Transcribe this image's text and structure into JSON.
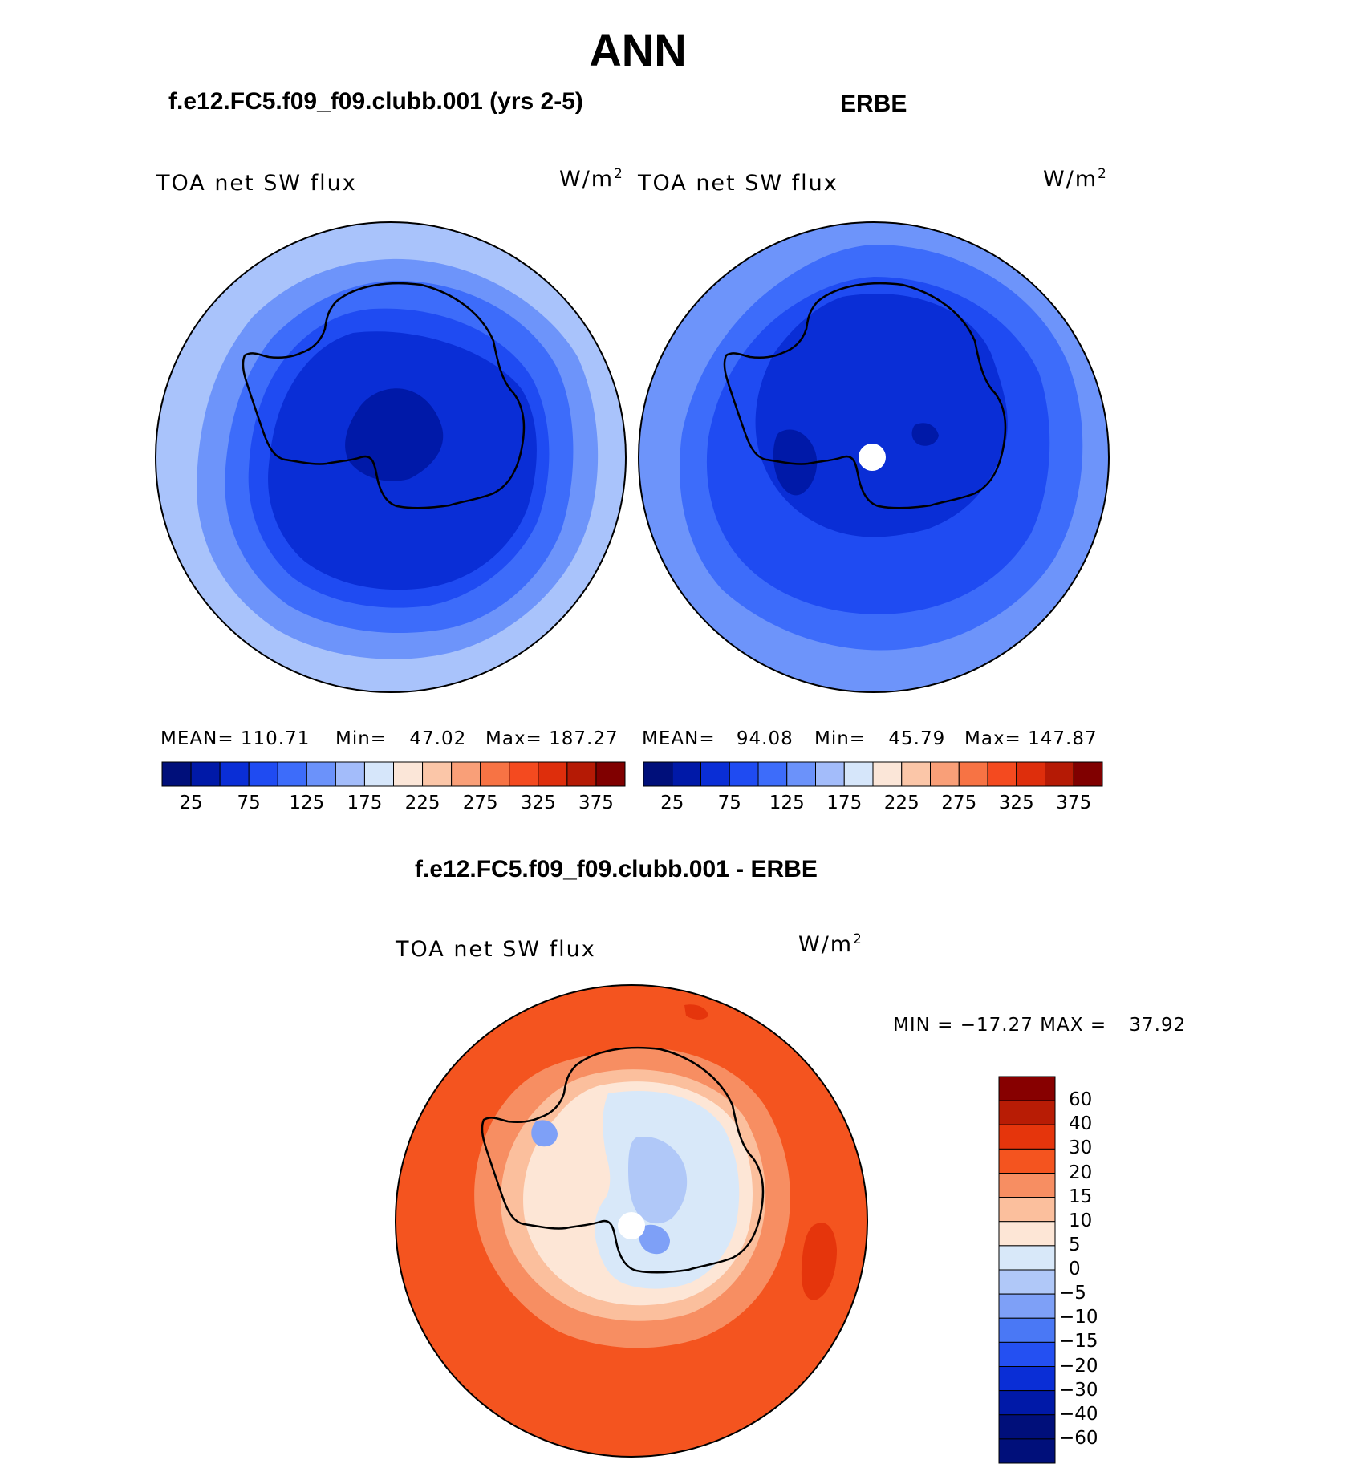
{
  "main_title": "ANN",
  "colors": {
    "model_palette": [
      "#000f7a",
      "#0019a8",
      "#0a2ed6",
      "#1f4bf2",
      "#3d6cfa",
      "#6b92fa",
      "#a3bcfa",
      "#d6e6fa",
      "#fbe6d8",
      "#fbc6a8",
      "#f99f78",
      "#f77344",
      "#f44a1f",
      "#de2e0c",
      "#b51a05",
      "#800000"
    ],
    "diff_palette": [
      "#000f7a",
      "#0019a8",
      "#0a2ed6",
      "#2450f2",
      "#4a78f5",
      "#7ea0f7",
      "#b0c8f8",
      "#d8e8f9",
      "#fde6d6",
      "#fbbf9d",
      "#f78e62",
      "#f4541f",
      "#e5350c",
      "#b81c05",
      "#870000"
    ]
  },
  "map_common": {
    "field": "TOA net SW flux",
    "units_base": "W/m",
    "units_exp": "2"
  },
  "model_panel": {
    "title": "f.e12.FC5.f09_f09.clubb.001 (yrs 2-5)",
    "mean_label": "MEAN=",
    "mean_value": "110.71",
    "min_label": "Min=",
    "min_value": "47.02",
    "max_label": "Max=",
    "max_value": "187.27"
  },
  "obs_panel": {
    "title": "ERBE",
    "mean_label": "MEAN=",
    "mean_value": "94.08",
    "min_label": "Min=",
    "min_value": "45.79",
    "max_label": "Max=",
    "max_value": "147.87"
  },
  "diff_panel": {
    "title": "f.e12.FC5.f09_f09.clubb.001 - ERBE",
    "min_label": "MIN =",
    "min_value": "−17.27",
    "max_label": "MAX =",
    "max_value": "37.92"
  },
  "chart_data": [
    {
      "type": "heatmap",
      "projection": "south polar stereographic",
      "title": "f.e12.FC5.f09_f09.clubb.001 (yrs 2-5)",
      "field": "TOA net SW flux",
      "units": "W/m2",
      "mean": 110.71,
      "min": 47.02,
      "max": 187.27,
      "colorbar_levels": [
        25,
        50,
        75,
        100,
        125,
        150,
        175,
        200,
        225,
        250,
        275,
        300,
        325,
        350,
        375
      ],
      "colorbar_tick_labels": [
        "25",
        "75",
        "125",
        "175",
        "225",
        "275",
        "325",
        "375"
      ]
    },
    {
      "type": "heatmap",
      "projection": "south polar stereographic",
      "title": "ERBE",
      "field": "TOA net SW flux",
      "units": "W/m2",
      "mean": 94.08,
      "min": 45.79,
      "max": 147.87,
      "colorbar_levels": [
        25,
        50,
        75,
        100,
        125,
        150,
        175,
        200,
        225,
        250,
        275,
        300,
        325,
        350,
        375
      ],
      "colorbar_tick_labels": [
        "25",
        "75",
        "125",
        "175",
        "225",
        "275",
        "325",
        "375"
      ]
    },
    {
      "type": "heatmap",
      "projection": "south polar stereographic",
      "title": "f.e12.FC5.f09_f09.clubb.001 - ERBE",
      "field": "TOA net SW flux",
      "units": "W/m2",
      "min": -17.27,
      "max": 37.92,
      "colorbar_levels": [
        -60,
        -40,
        -30,
        -20,
        -15,
        -10,
        -5,
        0,
        5,
        10,
        15,
        20,
        30,
        40,
        60
      ],
      "colorbar_tick_labels": [
        "60",
        "40",
        "30",
        "20",
        "15",
        "10",
        "5",
        "0",
        "−5",
        "−10",
        "−15",
        "−20",
        "−30",
        "−40",
        "−60"
      ]
    }
  ]
}
